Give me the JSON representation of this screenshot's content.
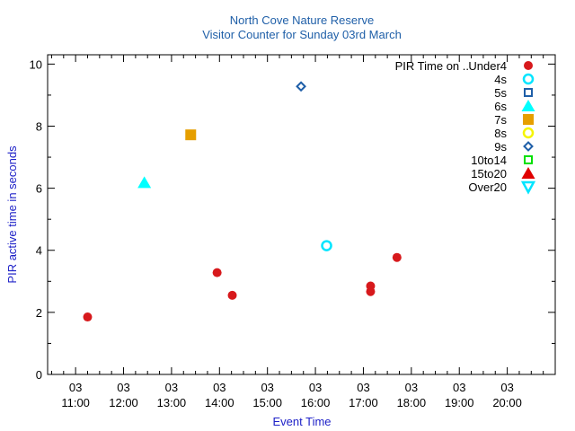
{
  "chart_data": {
    "type": "scatter",
    "title": "North Cove Nature Reserve",
    "subtitle": "Visitor Counter for Sunday 03rd March",
    "xlabel": "Event Time",
    "ylabel": "PIR active time in seconds",
    "legend_title": "PIR Time on ..",
    "legend_position": "top-right",
    "grid": false,
    "xlim": [
      "10:25",
      "21:00"
    ],
    "ylim": [
      0,
      10.3
    ],
    "y_ticks": [
      "0",
      "2",
      "4",
      "6",
      "8",
      "10"
    ],
    "x_ticks": [
      {
        "day": "03",
        "time": "11:00"
      },
      {
        "day": "03",
        "time": "12:00"
      },
      {
        "day": "03",
        "time": "13:00"
      },
      {
        "day": "03",
        "time": "14:00"
      },
      {
        "day": "03",
        "time": "15:00"
      },
      {
        "day": "03",
        "time": "16:00"
      },
      {
        "day": "03",
        "time": "17:00"
      },
      {
        "day": "03",
        "time": "18:00"
      },
      {
        "day": "03",
        "time": "19:00"
      },
      {
        "day": "03",
        "time": "20:00"
      }
    ],
    "series": [
      {
        "name": "Under4",
        "marker": "circle-filled",
        "color": "#d7191c",
        "points": [
          {
            "x": "11:15",
            "y": 1.85
          },
          {
            "x": "13:57",
            "y": 3.28
          },
          {
            "x": "14:16",
            "y": 2.55
          },
          {
            "x": "17:09",
            "y": 2.85
          },
          {
            "x": "17:09",
            "y": 2.67
          },
          {
            "x": "17:42",
            "y": 3.77
          }
        ]
      },
      {
        "name": "4s",
        "marker": "circle-open",
        "color": "#00e5ff",
        "points": [
          {
            "x": "16:14",
            "y": 4.15
          }
        ]
      },
      {
        "name": "5s",
        "marker": "square-open",
        "color": "#1f5fa8",
        "points": []
      },
      {
        "name": "6s",
        "marker": "triangle-up-filled",
        "color": "#00ffff",
        "points": [
          {
            "x": "12:26",
            "y": 6.18
          }
        ]
      },
      {
        "name": "7s",
        "marker": "square-filled",
        "color": "#e69f00",
        "points": [
          {
            "x": "13:24",
            "y": 7.72
          }
        ]
      },
      {
        "name": "8s",
        "marker": "circle-open",
        "color": "#f5f500",
        "points": []
      },
      {
        "name": "9s",
        "marker": "diamond-open",
        "color": "#1f5fa8",
        "points": [
          {
            "x": "15:42",
            "y": 9.28
          }
        ]
      },
      {
        "name": "10to14",
        "marker": "square-open",
        "color": "#00e000",
        "points": []
      },
      {
        "name": "15to20",
        "marker": "triangle-up-filled",
        "color": "#e00000",
        "points": []
      },
      {
        "name": "Over20",
        "marker": "triangle-down-open",
        "color": "#00e5ff",
        "points": []
      }
    ]
  }
}
